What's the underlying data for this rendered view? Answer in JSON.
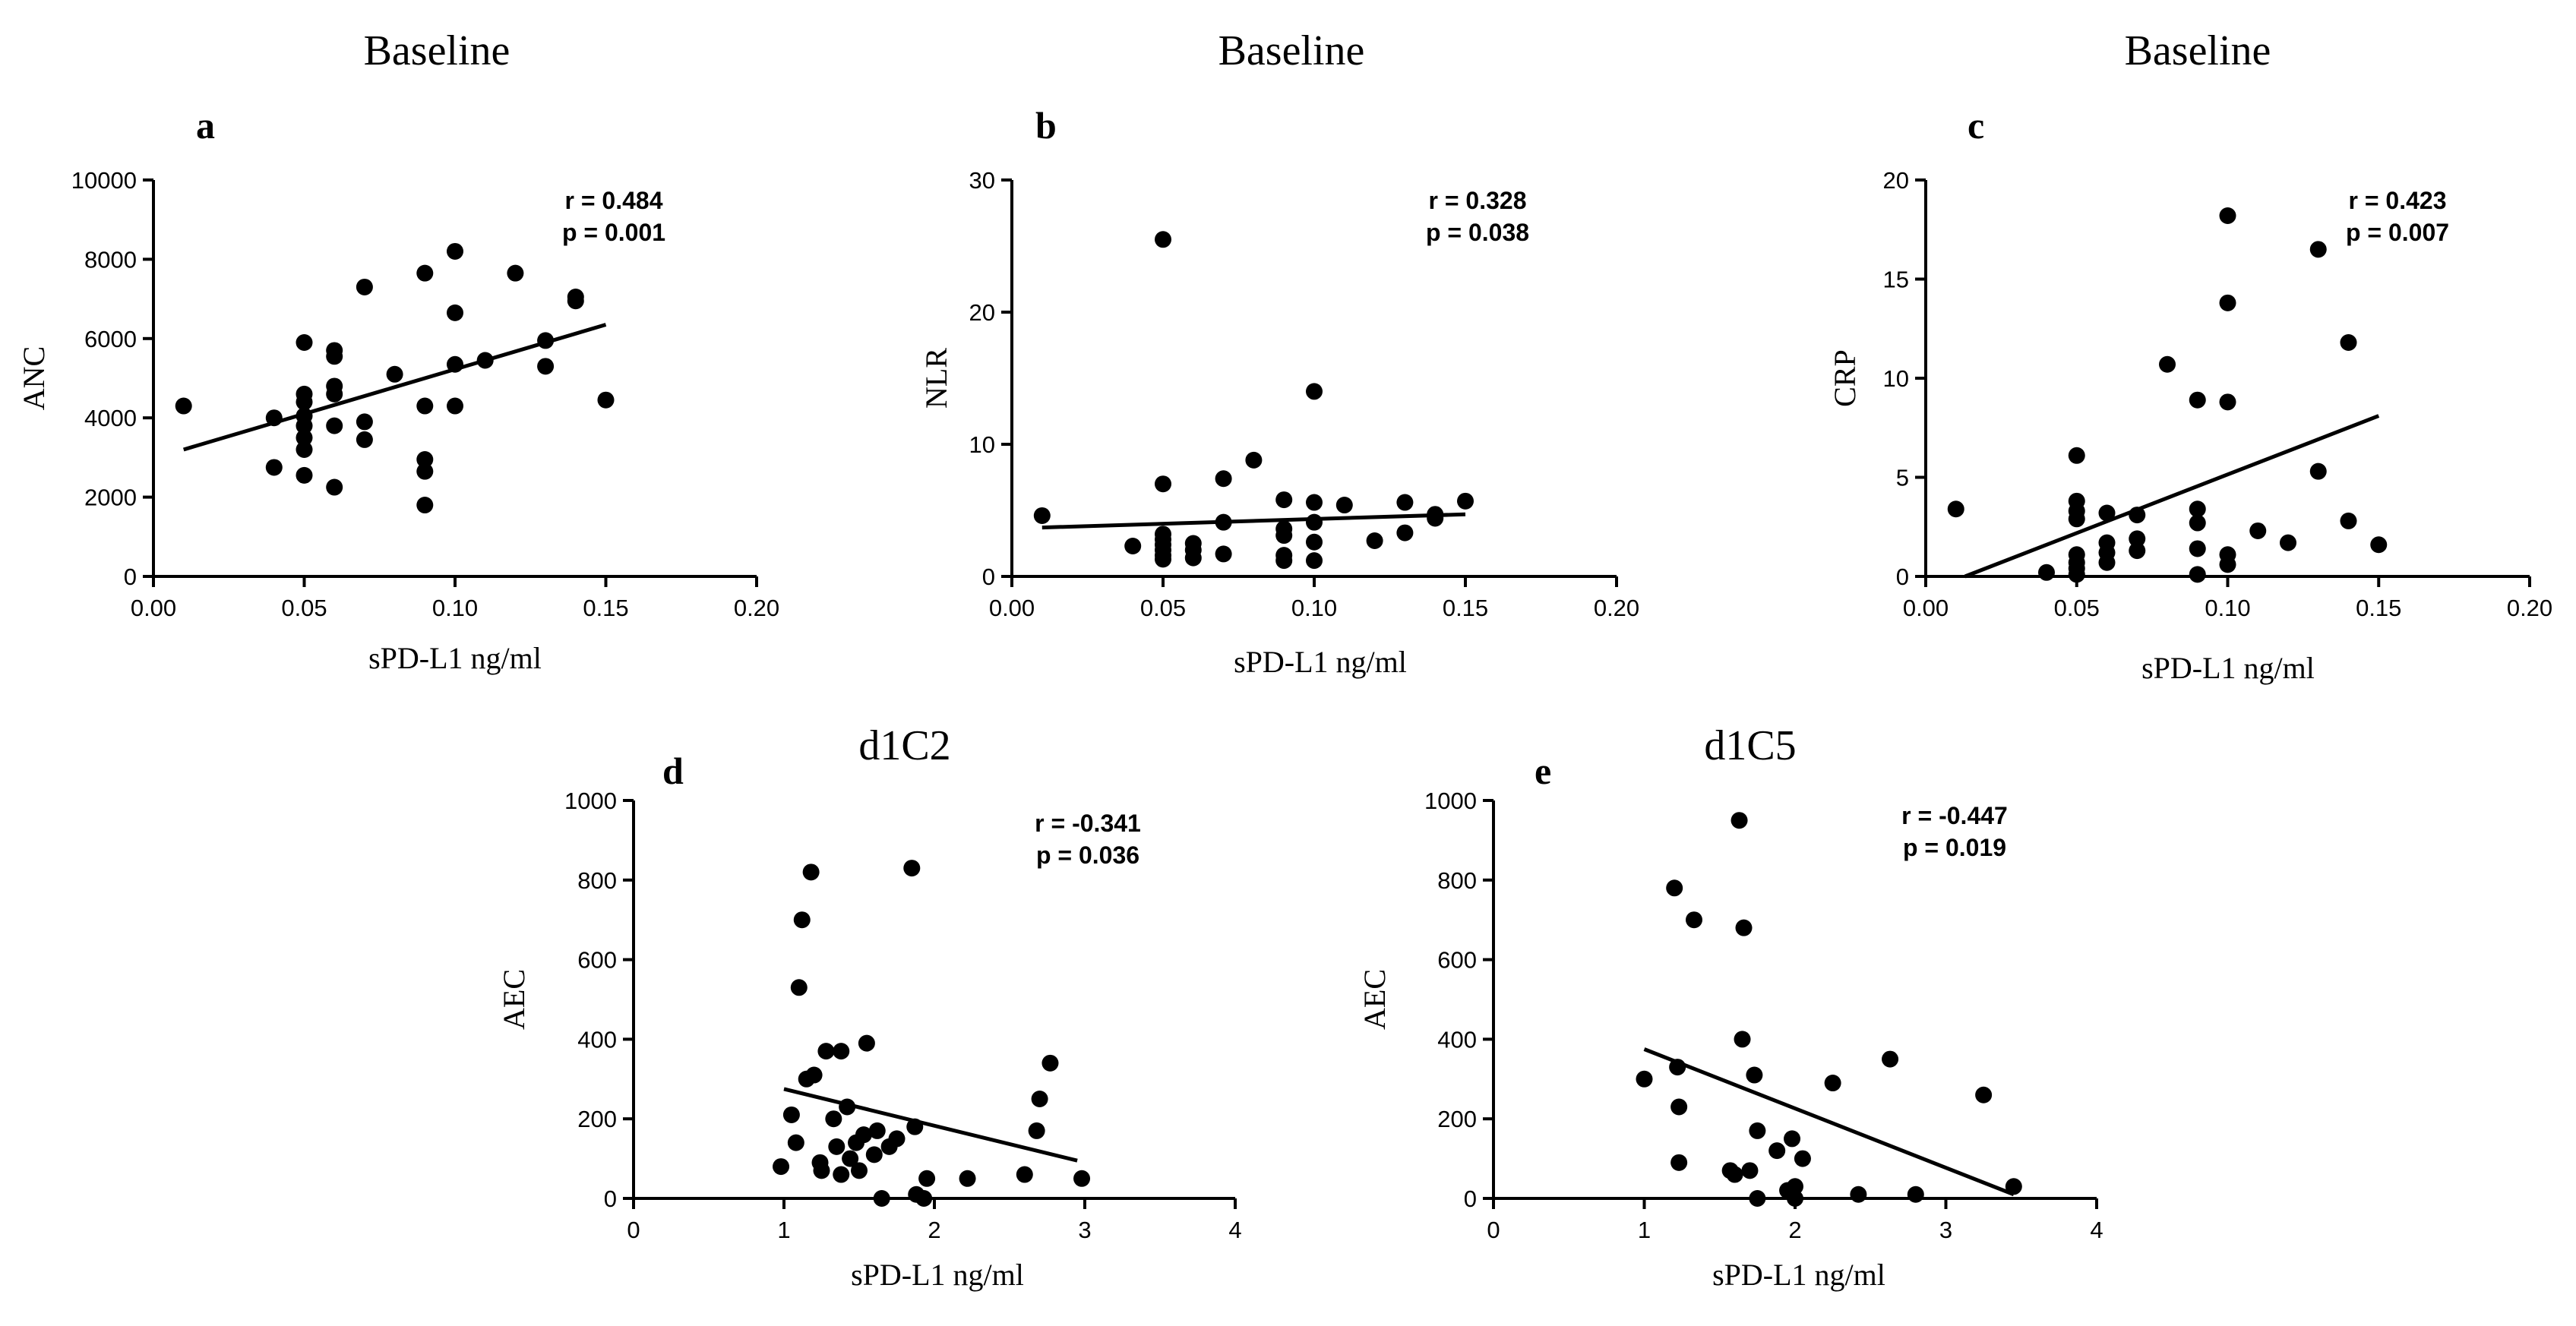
{
  "chart_data": [
    {
      "type": "scatter",
      "title": "Baseline",
      "panel_label": "a",
      "xlabel": "sPD-L1 ng/ml",
      "ylabel": "ANC",
      "xlim": [
        0,
        0.2
      ],
      "ylim": [
        0,
        10000
      ],
      "xticks": [
        "0.00",
        "0.05",
        "0.10",
        "0.15",
        "0.20"
      ],
      "xtick_values": [
        0,
        0.05,
        0.1,
        0.15,
        0.2
      ],
      "yticks": [
        "0",
        "2000",
        "4000",
        "6000",
        "8000",
        "10000"
      ],
      "ytick_values": [
        0,
        2000,
        4000,
        6000,
        8000,
        10000
      ],
      "stats": [
        "r = 0.484",
        "p = 0.001"
      ],
      "fit_line": [
        [
          0.01,
          3200
        ],
        [
          0.15,
          6350
        ]
      ],
      "points": [
        [
          0.01,
          4300
        ],
        [
          0.04,
          4000
        ],
        [
          0.04,
          2750
        ],
        [
          0.05,
          5900
        ],
        [
          0.05,
          4600
        ],
        [
          0.05,
          4400
        ],
        [
          0.05,
          4050
        ],
        [
          0.05,
          3800
        ],
        [
          0.05,
          3500
        ],
        [
          0.05,
          3200
        ],
        [
          0.05,
          2550
        ],
        [
          0.06,
          5700
        ],
        [
          0.06,
          5550
        ],
        [
          0.06,
          4800
        ],
        [
          0.06,
          4600
        ],
        [
          0.06,
          3800
        ],
        [
          0.06,
          2250
        ],
        [
          0.07,
          7300
        ],
        [
          0.07,
          3900
        ],
        [
          0.07,
          3450
        ],
        [
          0.08,
          5100
        ],
        [
          0.09,
          7650
        ],
        [
          0.09,
          4300
        ],
        [
          0.09,
          2950
        ],
        [
          0.09,
          2650
        ],
        [
          0.09,
          1800
        ],
        [
          0.1,
          8200
        ],
        [
          0.1,
          6650
        ],
        [
          0.1,
          5350
        ],
        [
          0.1,
          4300
        ],
        [
          0.11,
          5450
        ],
        [
          0.12,
          7650
        ],
        [
          0.13,
          5950
        ],
        [
          0.13,
          5300
        ],
        [
          0.14,
          7050
        ],
        [
          0.14,
          6950
        ],
        [
          0.15,
          4450
        ]
      ]
    },
    {
      "type": "scatter",
      "title": "Baseline",
      "panel_label": "b",
      "xlabel": "sPD-L1 ng/ml",
      "ylabel": "NLR",
      "xlim": [
        0,
        0.2
      ],
      "ylim": [
        0,
        30
      ],
      "xticks": [
        "0.00",
        "0.05",
        "0.10",
        "0.15",
        "0.20"
      ],
      "xtick_values": [
        0,
        0.05,
        0.1,
        0.15,
        0.2
      ],
      "yticks": [
        "0",
        "10",
        "20",
        "30"
      ],
      "ytick_values": [
        0,
        10,
        20,
        30
      ],
      "stats": [
        "r = 0.328",
        "p = 0.038"
      ],
      "fit_line": [
        [
          0.01,
          3.7
        ],
        [
          0.15,
          4.7
        ]
      ],
      "points": [
        [
          0.01,
          4.6
        ],
        [
          0.04,
          2.3
        ],
        [
          0.05,
          25.5
        ],
        [
          0.05,
          7.0
        ],
        [
          0.05,
          3.2
        ],
        [
          0.05,
          2.8
        ],
        [
          0.05,
          2.4
        ],
        [
          0.05,
          2.0
        ],
        [
          0.05,
          1.6
        ],
        [
          0.05,
          1.3
        ],
        [
          0.06,
          2.5
        ],
        [
          0.06,
          2.0
        ],
        [
          0.06,
          1.4
        ],
        [
          0.07,
          7.4
        ],
        [
          0.07,
          4.1
        ],
        [
          0.07,
          1.7
        ],
        [
          0.08,
          8.8
        ],
        [
          0.09,
          5.8
        ],
        [
          0.09,
          3.6
        ],
        [
          0.09,
          3.1
        ],
        [
          0.09,
          1.6
        ],
        [
          0.09,
          1.2
        ],
        [
          0.1,
          14.0
        ],
        [
          0.1,
          5.6
        ],
        [
          0.1,
          4.1
        ],
        [
          0.1,
          2.6
        ],
        [
          0.1,
          1.2
        ],
        [
          0.11,
          5.4
        ],
        [
          0.12,
          2.7
        ],
        [
          0.13,
          5.6
        ],
        [
          0.13,
          3.3
        ],
        [
          0.14,
          4.7
        ],
        [
          0.14,
          4.4
        ],
        [
          0.15,
          5.7
        ]
      ]
    },
    {
      "type": "scatter",
      "title": "Baseline",
      "panel_label": "c",
      "xlabel": "sPD-L1 ng/ml",
      "ylabel": "CRP",
      "xlim": [
        0,
        0.2
      ],
      "ylim": [
        0,
        20
      ],
      "xticks": [
        "0.00",
        "0.05",
        "0.10",
        "0.15",
        "0.20"
      ],
      "xtick_values": [
        0,
        0.05,
        0.1,
        0.15,
        0.2
      ],
      "yticks": [
        "0",
        "5",
        "10",
        "15",
        "20"
      ],
      "ytick_values": [
        0,
        5,
        10,
        15,
        20
      ],
      "stats": [
        "r = 0.423",
        "p = 0.007"
      ],
      "fit_line": [
        [
          0.013,
          0
        ],
        [
          0.15,
          8.1
        ]
      ],
      "points": [
        [
          0.01,
          3.4
        ],
        [
          0.04,
          0.2
        ],
        [
          0.05,
          6.1
        ],
        [
          0.05,
          3.8
        ],
        [
          0.05,
          3.3
        ],
        [
          0.05,
          2.9
        ],
        [
          0.05,
          1.1
        ],
        [
          0.05,
          0.7
        ],
        [
          0.05,
          0.4
        ],
        [
          0.05,
          0.1
        ],
        [
          0.06,
          3.2
        ],
        [
          0.06,
          1.7
        ],
        [
          0.06,
          1.2
        ],
        [
          0.06,
          0.7
        ],
        [
          0.07,
          3.1
        ],
        [
          0.07,
          1.9
        ],
        [
          0.07,
          1.3
        ],
        [
          0.08,
          10.7
        ],
        [
          0.09,
          8.9
        ],
        [
          0.09,
          3.4
        ],
        [
          0.09,
          2.7
        ],
        [
          0.09,
          1.4
        ],
        [
          0.09,
          0.1
        ],
        [
          0.1,
          18.2
        ],
        [
          0.1,
          13.8
        ],
        [
          0.1,
          8.8
        ],
        [
          0.1,
          1.1
        ],
        [
          0.1,
          0.6
        ],
        [
          0.11,
          2.3
        ],
        [
          0.12,
          1.7
        ],
        [
          0.13,
          16.5
        ],
        [
          0.13,
          5.3
        ],
        [
          0.14,
          11.8
        ],
        [
          0.14,
          2.8
        ],
        [
          0.15,
          1.6
        ]
      ]
    },
    {
      "type": "scatter",
      "title": "d1C2",
      "panel_label": "d",
      "xlabel": "sPD-L1 ng/ml",
      "ylabel": "AEC",
      "xlim": [
        0,
        4
      ],
      "ylim": [
        0,
        1000
      ],
      "xticks": [
        "0",
        "1",
        "2",
        "3",
        "4"
      ],
      "xtick_values": [
        0,
        1,
        2,
        3,
        4
      ],
      "yticks": [
        "0",
        "200",
        "400",
        "600",
        "800",
        "1000"
      ],
      "ytick_values": [
        0,
        200,
        400,
        600,
        800,
        1000
      ],
      "stats": [
        "r = -0.341",
        "p = 0.036"
      ],
      "fit_line": [
        [
          1.0,
          275
        ],
        [
          2.95,
          95
        ]
      ],
      "points": [
        [
          0.98,
          80
        ],
        [
          1.05,
          210
        ],
        [
          1.08,
          140
        ],
        [
          1.1,
          530
        ],
        [
          1.12,
          700
        ],
        [
          1.15,
          300
        ],
        [
          1.18,
          820
        ],
        [
          1.2,
          310
        ],
        [
          1.24,
          90
        ],
        [
          1.25,
          70
        ],
        [
          1.28,
          370
        ],
        [
          1.33,
          200
        ],
        [
          1.35,
          130
        ],
        [
          1.38,
          370
        ],
        [
          1.38,
          60
        ],
        [
          1.42,
          230
        ],
        [
          1.44,
          100
        ],
        [
          1.48,
          140
        ],
        [
          1.5,
          70
        ],
        [
          1.53,
          160
        ],
        [
          1.55,
          390
        ],
        [
          1.6,
          110
        ],
        [
          1.62,
          170
        ],
        [
          1.65,
          0
        ],
        [
          1.7,
          130
        ],
        [
          1.75,
          150
        ],
        [
          1.85,
          830
        ],
        [
          1.87,
          180
        ],
        [
          1.88,
          10
        ],
        [
          1.93,
          0
        ],
        [
          1.95,
          50
        ],
        [
          2.22,
          50
        ],
        [
          2.6,
          60
        ],
        [
          2.68,
          170
        ],
        [
          2.7,
          250
        ],
        [
          2.77,
          340
        ],
        [
          2.98,
          50
        ]
      ]
    },
    {
      "type": "scatter",
      "title": "d1C5",
      "panel_label": "e",
      "xlabel": "sPD-L1 ng/ml",
      "ylabel": "AEC",
      "xlim": [
        0,
        4
      ],
      "ylim": [
        0,
        1000
      ],
      "xticks": [
        "0",
        "1",
        "2",
        "3",
        "4"
      ],
      "xtick_values": [
        0,
        1,
        2,
        3,
        4
      ],
      "yticks": [
        "0",
        "200",
        "400",
        "600",
        "800",
        "1000"
      ],
      "ytick_values": [
        0,
        200,
        400,
        600,
        800,
        1000
      ],
      "stats": [
        "r = -0.447",
        "p = 0.019"
      ],
      "fit_line": [
        [
          1.0,
          375
        ],
        [
          3.45,
          10
        ]
      ],
      "points": [
        [
          1.0,
          300
        ],
        [
          1.2,
          780
        ],
        [
          1.22,
          330
        ],
        [
          1.23,
          230
        ],
        [
          1.23,
          90
        ],
        [
          1.33,
          700
        ],
        [
          1.57,
          70
        ],
        [
          1.6,
          60
        ],
        [
          1.63,
          950
        ],
        [
          1.65,
          400
        ],
        [
          1.66,
          680
        ],
        [
          1.7,
          70
        ],
        [
          1.73,
          310
        ],
        [
          1.75,
          170
        ],
        [
          1.75,
          0
        ],
        [
          1.88,
          120
        ],
        [
          1.95,
          20
        ],
        [
          1.98,
          150
        ],
        [
          2.0,
          30
        ],
        [
          2.0,
          0
        ],
        [
          2.05,
          100
        ],
        [
          2.25,
          290
        ],
        [
          2.42,
          10
        ],
        [
          2.63,
          350
        ],
        [
          2.8,
          10
        ],
        [
          3.25,
          260
        ],
        [
          3.45,
          30
        ]
      ]
    }
  ]
}
